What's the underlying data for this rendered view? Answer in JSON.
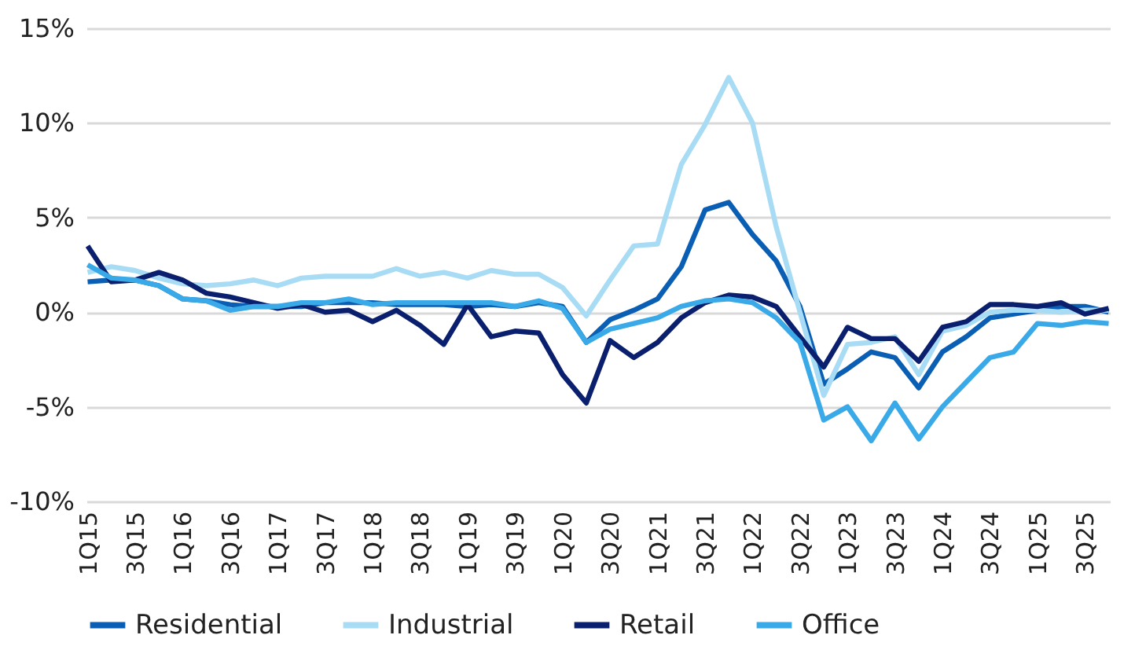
{
  "chart_data": {
    "type": "line",
    "categories": [
      "1Q15",
      null,
      "3Q15",
      null,
      "1Q16",
      null,
      "3Q16",
      null,
      "1Q17",
      null,
      "3Q17",
      null,
      "1Q18",
      null,
      "3Q18",
      null,
      "1Q19",
      null,
      "3Q19",
      null,
      "1Q20",
      null,
      "3Q20",
      null,
      "1Q21",
      null,
      "3Q21",
      null,
      "1Q22",
      null,
      "3Q22",
      null,
      "1Q23",
      null,
      "3Q23",
      null,
      "1Q24",
      null,
      "3Q24",
      null,
      "1Q25",
      null,
      "3Q25",
      null
    ],
    "series": [
      {
        "name": "Residential",
        "color": "#0a5fb4",
        "values": [
          1.6,
          1.7,
          1.7,
          1.4,
          0.7,
          0.6,
          0.4,
          0.3,
          0.3,
          0.3,
          0.5,
          0.5,
          0.5,
          0.4,
          0.4,
          0.4,
          0.3,
          0.4,
          0.3,
          0.5,
          0.3,
          -1.6,
          -0.4,
          0.1,
          0.7,
          2.4,
          5.4,
          5.8,
          4.1,
          2.7,
          0.3,
          -3.8,
          -3.0,
          -2.1,
          -2.4,
          -4.0,
          -2.1,
          -1.3,
          -0.3,
          -0.1,
          0.1,
          0.3,
          0.3,
          0.0
        ]
      },
      {
        "name": "Industrial",
        "color": "#a8dcf5",
        "values": [
          2.1,
          2.4,
          2.2,
          1.8,
          1.5,
          1.4,
          1.5,
          1.7,
          1.4,
          1.8,
          1.9,
          1.9,
          1.9,
          2.3,
          1.9,
          2.1,
          1.8,
          2.2,
          2.0,
          2.0,
          1.3,
          -0.2,
          1.7,
          3.5,
          3.6,
          7.8,
          9.9,
          12.4,
          10.0,
          4.5,
          0.0,
          -4.4,
          -1.7,
          -1.6,
          -1.3,
          -3.3,
          -1.0,
          -0.7,
          0.0,
          0.1,
          0.1,
          0.0,
          0.1,
          0.1
        ]
      },
      {
        "name": "Retail",
        "color": "#0a1f6e",
        "values": [
          3.5,
          1.6,
          1.7,
          2.1,
          1.7,
          1.0,
          0.8,
          0.5,
          0.2,
          0.4,
          0.0,
          0.1,
          -0.5,
          0.1,
          -0.7,
          -1.7,
          0.4,
          -1.3,
          -1.0,
          -1.1,
          -3.3,
          -4.8,
          -1.5,
          -2.4,
          -1.6,
          -0.3,
          0.5,
          0.9,
          0.8,
          0.3,
          -1.3,
          -2.9,
          -0.8,
          -1.4,
          -1.4,
          -2.6,
          -0.8,
          -0.5,
          0.4,
          0.4,
          0.3,
          0.5,
          -0.1,
          0.2
        ]
      },
      {
        "name": "Office",
        "color": "#3aa9e8",
        "values": [
          2.5,
          1.8,
          1.7,
          1.4,
          0.7,
          0.6,
          0.1,
          0.3,
          0.3,
          0.5,
          0.5,
          0.7,
          0.4,
          0.5,
          0.5,
          0.5,
          0.5,
          0.5,
          0.3,
          0.6,
          0.2,
          -1.6,
          -0.9,
          -0.6,
          -0.3,
          0.3,
          0.6,
          0.7,
          0.5,
          -0.3,
          -1.6,
          -5.7,
          -5.0,
          -6.8,
          -4.8,
          -6.7,
          -5.0,
          -3.7,
          -2.4,
          -2.1,
          -0.6,
          -0.7,
          -0.5,
          -0.6
        ]
      }
    ],
    "ylim": [
      -10,
      15
    ],
    "yticks": [
      {
        "value": -10,
        "label": "-10%"
      },
      {
        "value": -5,
        "label": "-5%"
      },
      {
        "value": 0,
        "label": "0%"
      },
      {
        "value": 5,
        "label": "5%"
      },
      {
        "value": 10,
        "label": "10%"
      },
      {
        "value": 15,
        "label": "15%"
      }
    ],
    "grid": "y",
    "legend": "bottom",
    "marker": "none",
    "line_style": "solid"
  }
}
